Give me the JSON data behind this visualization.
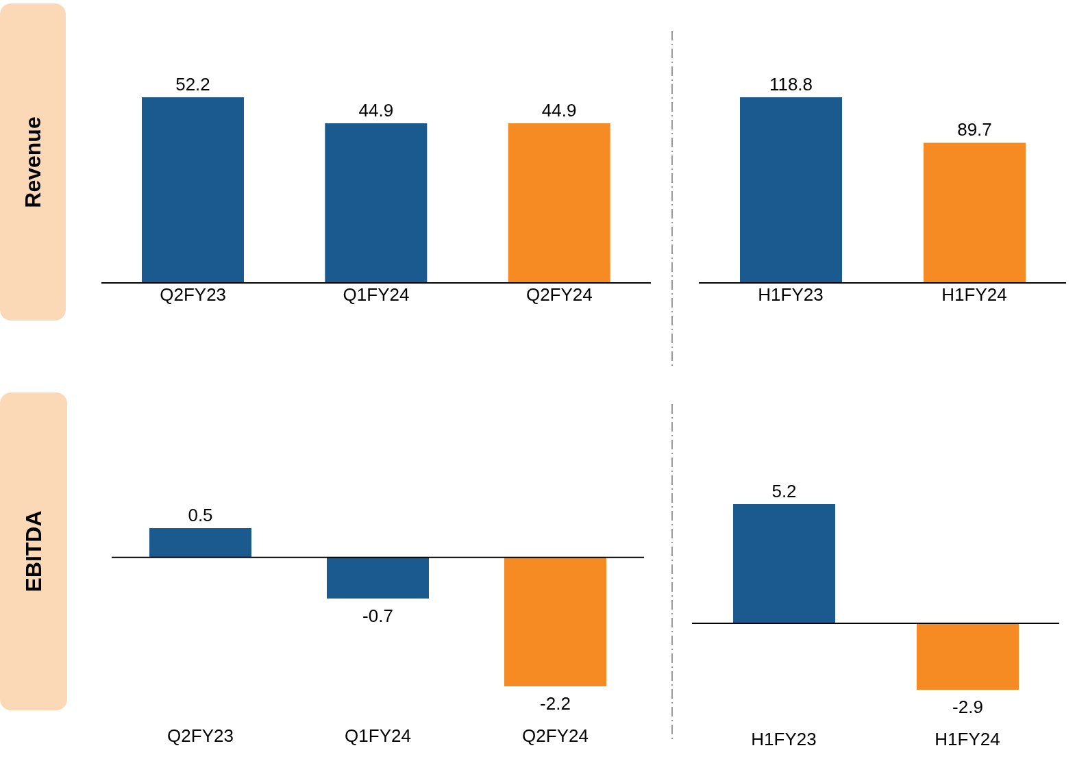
{
  "chart_data": [
    {
      "type": "bar",
      "ylabel": "Revenue",
      "categories": [
        "Q2FY23",
        "Q1FY24",
        "Q2FY24"
      ],
      "values": [
        52.2,
        44.9,
        44.9
      ],
      "colors": [
        "#1b5a8f",
        "#1b5a8f",
        "#f68b24"
      ],
      "data_labels": true,
      "tick_labels": "x"
    },
    {
      "type": "bar",
      "categories": [
        "H1FY23",
        "H1FY24"
      ],
      "values": [
        118.8,
        89.7
      ],
      "colors": [
        "#1b5a8f",
        "#f68b24"
      ],
      "data_labels": true,
      "tick_labels": "x"
    },
    {
      "type": "bar",
      "ylabel": "EBITDA",
      "categories": [
        "Q2FY23",
        "Q1FY24",
        "Q2FY24"
      ],
      "values": [
        0.5,
        -0.7,
        -2.2
      ],
      "colors": [
        "#1b5a8f",
        "#1b5a8f",
        "#f68b24"
      ],
      "data_labels": true,
      "tick_labels": "x"
    },
    {
      "type": "bar",
      "categories": [
        "H1FY23",
        "H1FY24"
      ],
      "values": [
        5.2,
        -2.9
      ],
      "colors": [
        "#1b5a8f",
        "#f68b24"
      ],
      "data_labels": true,
      "tick_labels": "x"
    }
  ]
}
